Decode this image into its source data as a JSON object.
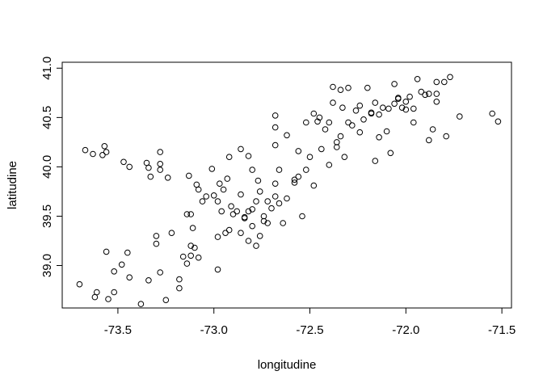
{
  "chart_data": {
    "type": "scatter",
    "title": "",
    "xlabel": "longitudine",
    "ylabel": "latitudine",
    "xlim": [
      -73.79,
      -71.45
    ],
    "ylim": [
      38.57,
      41.06
    ],
    "xticks": [
      -73.5,
      -73.0,
      -72.5,
      -72.0,
      -71.5
    ],
    "xtick_labels": [
      "-73.5",
      "-73.0",
      "-72.5",
      "-72.0",
      "-71.5"
    ],
    "yticks": [
      39.0,
      39.5,
      40.0,
      40.5,
      41.0
    ],
    "ytick_labels": [
      "39.0",
      "39.5",
      "40.0",
      "40.5",
      "41.0"
    ],
    "grid": false,
    "marker": "open-circle",
    "points": [
      [
        -73.7,
        38.81
      ],
      [
        -73.62,
        38.68
      ],
      [
        -73.61,
        38.73
      ],
      [
        -73.55,
        38.66
      ],
      [
        -73.52,
        38.73
      ],
      [
        -73.52,
        38.94
      ],
      [
        -73.48,
        39.01
      ],
      [
        -73.44,
        38.88
      ],
      [
        -73.38,
        38.61
      ],
      [
        -73.34,
        38.85
      ],
      [
        -73.28,
        38.93
      ],
      [
        -73.25,
        38.65
      ],
      [
        -73.18,
        38.77
      ],
      [
        -73.18,
        38.86
      ],
      [
        -73.16,
        39.09
      ],
      [
        -73.14,
        39.02
      ],
      [
        -73.12,
        39.1
      ],
      [
        -73.12,
        39.2
      ],
      [
        -73.1,
        39.18
      ],
      [
        -73.08,
        39.08
      ],
      [
        -73.06,
        39.65
      ],
      [
        -72.98,
        38.96
      ],
      [
        -72.98,
        39.29
      ],
      [
        -72.96,
        39.55
      ],
      [
        -72.94,
        39.33
      ],
      [
        -72.92,
        39.36
      ],
      [
        -72.9,
        39.52
      ],
      [
        -72.86,
        39.33
      ],
      [
        -72.84,
        39.48
      ],
      [
        -72.82,
        39.25
      ],
      [
        -72.8,
        39.4
      ],
      [
        -72.78,
        39.2
      ],
      [
        -72.76,
        39.3
      ],
      [
        -72.74,
        39.45
      ],
      [
        -72.72,
        39.65
      ],
      [
        -73.56,
        39.14
      ],
      [
        -73.45,
        39.13
      ],
      [
        -73.3,
        39.22
      ],
      [
        -73.3,
        39.3
      ],
      [
        -73.22,
        39.33
      ],
      [
        -73.14,
        39.52
      ],
      [
        -73.12,
        39.52
      ],
      [
        -73.11,
        39.38
      ],
      [
        -73.08,
        39.77
      ],
      [
        -73.04,
        39.7
      ],
      [
        -73.0,
        39.71
      ],
      [
        -72.98,
        39.65
      ],
      [
        -72.97,
        39.83
      ],
      [
        -72.95,
        39.77
      ],
      [
        -72.93,
        39.88
      ],
      [
        -72.91,
        39.6
      ],
      [
        -72.88,
        39.55
      ],
      [
        -72.86,
        39.72
      ],
      [
        -72.84,
        39.49
      ],
      [
        -72.82,
        39.55
      ],
      [
        -72.8,
        39.57
      ],
      [
        -72.78,
        39.65
      ],
      [
        -72.76,
        39.75
      ],
      [
        -72.74,
        39.5
      ],
      [
        -72.72,
        39.43
      ],
      [
        -72.7,
        39.58
      ],
      [
        -72.68,
        39.7
      ],
      [
        -72.66,
        39.63
      ],
      [
        -72.64,
        39.43
      ],
      [
        -72.62,
        39.68
      ],
      [
        -72.58,
        39.84
      ],
      [
        -72.56,
        39.9
      ],
      [
        -72.54,
        39.5
      ],
      [
        -72.52,
        39.97
      ],
      [
        -72.5,
        40.1
      ],
      [
        -72.48,
        39.81
      ],
      [
        -72.46,
        40.46
      ],
      [
        -72.44,
        40.18
      ],
      [
        -72.42,
        40.38
      ],
      [
        -72.4,
        40.02
      ],
      [
        -72.38,
        40.65
      ],
      [
        -72.36,
        40.25
      ],
      [
        -72.34,
        40.31
      ],
      [
        -72.32,
        40.1
      ],
      [
        -72.3,
        40.45
      ],
      [
        -72.28,
        40.42
      ],
      [
        -72.26,
        40.57
      ],
      [
        -72.24,
        40.35
      ],
      [
        -72.22,
        40.48
      ],
      [
        -72.2,
        40.8
      ],
      [
        -72.18,
        40.55
      ],
      [
        -72.16,
        40.06
      ],
      [
        -72.14,
        40.3
      ],
      [
        -72.12,
        40.6
      ],
      [
        -72.1,
        40.36
      ],
      [
        -72.08,
        40.14
      ],
      [
        -72.06,
        40.84
      ],
      [
        -72.04,
        40.7
      ],
      [
        -72.02,
        40.6
      ],
      [
        -72.0,
        40.58
      ],
      [
        -71.98,
        40.71
      ],
      [
        -71.96,
        40.45
      ],
      [
        -71.94,
        40.89
      ],
      [
        -71.92,
        40.76
      ],
      [
        -71.9,
        40.73
      ],
      [
        -71.88,
        40.27
      ],
      [
        -71.86,
        40.38
      ],
      [
        -71.84,
        40.86
      ],
      [
        -71.84,
        40.66
      ],
      [
        -71.8,
        40.86
      ],
      [
        -71.79,
        40.31
      ],
      [
        -71.77,
        40.91
      ],
      [
        -71.72,
        40.51
      ],
      [
        -71.55,
        40.54
      ],
      [
        -71.52,
        40.46
      ],
      [
        -73.67,
        40.17
      ],
      [
        -73.63,
        40.13
      ],
      [
        -73.58,
        40.12
      ],
      [
        -73.57,
        40.21
      ],
      [
        -73.56,
        40.15
      ],
      [
        -73.47,
        40.05
      ],
      [
        -73.44,
        40.0
      ],
      [
        -73.35,
        40.04
      ],
      [
        -73.34,
        39.99
      ],
      [
        -73.33,
        39.9
      ],
      [
        -73.28,
        39.97
      ],
      [
        -73.28,
        40.03
      ],
      [
        -73.28,
        40.15
      ],
      [
        -73.24,
        39.89
      ],
      [
        -73.13,
        39.91
      ],
      [
        -73.09,
        39.82
      ],
      [
        -73.01,
        39.98
      ],
      [
        -72.92,
        40.1
      ],
      [
        -72.86,
        40.18
      ],
      [
        -72.82,
        40.11
      ],
      [
        -72.8,
        39.97
      ],
      [
        -72.77,
        39.86
      ],
      [
        -72.68,
        39.83
      ],
      [
        -72.66,
        39.97
      ],
      [
        -72.62,
        40.32
      ],
      [
        -72.68,
        40.22
      ],
      [
        -72.68,
        40.4
      ],
      [
        -72.68,
        40.52
      ],
      [
        -72.58,
        39.87
      ],
      [
        -72.56,
        40.16
      ],
      [
        -72.52,
        40.45
      ],
      [
        -72.48,
        40.54
      ],
      [
        -72.45,
        40.5
      ],
      [
        -72.4,
        40.45
      ],
      [
        -72.36,
        40.2
      ],
      [
        -72.33,
        40.6
      ],
      [
        -72.3,
        40.8
      ],
      [
        -72.38,
        40.81
      ],
      [
        -72.34,
        40.78
      ],
      [
        -72.24,
        40.62
      ],
      [
        -72.18,
        40.54
      ],
      [
        -72.16,
        40.65
      ],
      [
        -72.14,
        40.53
      ],
      [
        -72.09,
        40.59
      ],
      [
        -72.06,
        40.64
      ],
      [
        -72.04,
        40.69
      ],
      [
        -72.0,
        40.66
      ],
      [
        -71.96,
        40.59
      ],
      [
        -71.88,
        40.74
      ],
      [
        -71.84,
        40.74
      ]
    ]
  }
}
